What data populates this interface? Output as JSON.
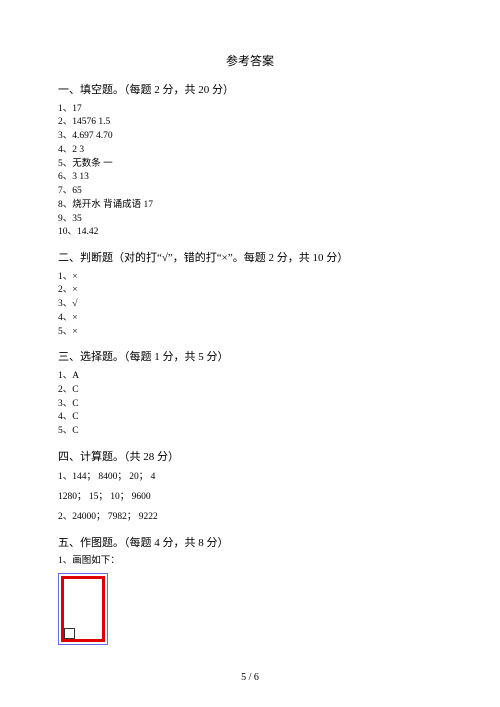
{
  "title": "参考答案",
  "footer": "5 / 6",
  "section1": {
    "heading": "一、填空题。（每题  2 分，共 20 分）",
    "items": [
      "1、17",
      "2、14576   1.5",
      "3、4.697   4.70",
      "4、2   3",
      "5、无数条     一",
      "6、3   13",
      "7、65",
      "8、烧开水      背诵成语    17",
      "9、35",
      "10、14.42"
    ]
  },
  "section2": {
    "heading": "二、判断题（对的打“√”，错的打“×”。每题     2 分，共 10 分）",
    "items": [
      "1、×",
      "2、×",
      "3、√",
      "4、×",
      "5、×"
    ]
  },
  "section3": {
    "heading": "三、选择题。（每题  1 分，共 5 分）",
    "items": [
      "1、A",
      "2、C",
      "3、C",
      "4、C",
      "5、C"
    ]
  },
  "section4": {
    "heading": "四、计算题。（共  28 分）",
    "line1": "1、144； 8400； 20； 4",
    "line2": "1280； 15； 10； 9600",
    "line3": "2、24000； 7982； 9222"
  },
  "section5": {
    "heading": "五、作图题。（每题  4 分，共 8 分）",
    "items": [
      "1、画图如下："
    ],
    "diagram": {
      "outer_border_color": "#6a6af0",
      "rect_border_color": "#e10000",
      "rect_border_width": 3,
      "corner_size": 9
    }
  }
}
